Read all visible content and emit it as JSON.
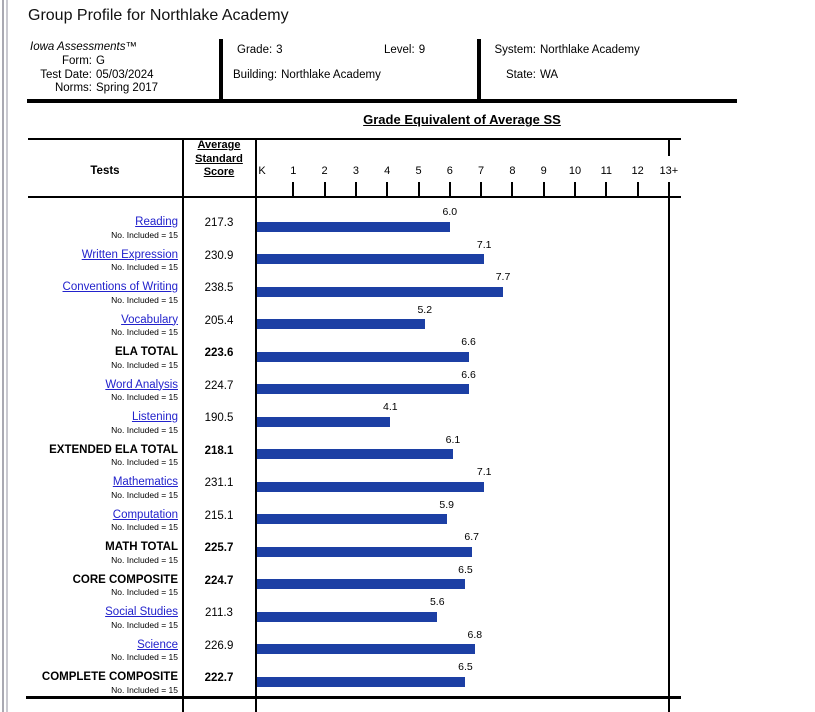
{
  "page": {
    "title": "Group Profile for Northlake Academy"
  },
  "theme": {
    "link_color": "#2222cc",
    "bar_color": "#1c3fa4",
    "rule_color": "#000000"
  },
  "info": {
    "product": "Iowa Assessments™",
    "fields_left": [
      {
        "label": "Form:",
        "value": "G"
      },
      {
        "label": "Test Date:",
        "value": "05/03/2024"
      },
      {
        "label": "Norms:",
        "value": "Spring 2017"
      }
    ],
    "grade": {
      "label": "Grade:",
      "value": "3"
    },
    "level": {
      "label": "Level:",
      "value": "9"
    },
    "building": {
      "label": "Building:",
      "value": "Northlake Academy"
    },
    "system": {
      "label": "System:",
      "value": "Northlake Academy"
    },
    "state": {
      "label": "State:",
      "value": "WA"
    }
  },
  "table_header": {
    "tests": "Tests",
    "avg_lines": [
      "Average",
      "Standard",
      "Score"
    ]
  },
  "chart_data": {
    "type": "bar",
    "orientation": "horizontal",
    "title": "Grade Equivalent of Average SS",
    "x_ticks": [
      "K",
      "1",
      "2",
      "3",
      "4",
      "5",
      "6",
      "7",
      "8",
      "9",
      "10",
      "11",
      "12",
      "13+"
    ],
    "x_range": [
      0,
      13
    ],
    "grid": false,
    "legend": false,
    "rows": [
      {
        "test": "Reading",
        "style": "link",
        "n_label": "No. Included = 15",
        "avg_ss": "217.3",
        "grade_equivalent": "6.0"
      },
      {
        "test": "Written Expression",
        "style": "link",
        "n_label": "No. Included = 15",
        "avg_ss": "230.9",
        "grade_equivalent": "7.1"
      },
      {
        "test": "Conventions of Writing",
        "style": "link",
        "n_label": "No. Included = 15",
        "avg_ss": "238.5",
        "grade_equivalent": "7.7"
      },
      {
        "test": "Vocabulary",
        "style": "link",
        "n_label": "No. Included = 15",
        "avg_ss": "205.4",
        "grade_equivalent": "5.2"
      },
      {
        "test": "ELA TOTAL",
        "style": "total",
        "n_label": "No. Included = 15",
        "avg_ss": "223.6",
        "grade_equivalent": "6.6"
      },
      {
        "test": "Word Analysis",
        "style": "link",
        "n_label": "No. Included = 15",
        "avg_ss": "224.7",
        "grade_equivalent": "6.6"
      },
      {
        "test": "Listening",
        "style": "link",
        "n_label": "No. Included = 15",
        "avg_ss": "190.5",
        "grade_equivalent": "4.1"
      },
      {
        "test": "EXTENDED ELA TOTAL",
        "style": "total",
        "n_label": "No. Included = 15",
        "avg_ss": "218.1",
        "grade_equivalent": "6.1"
      },
      {
        "test": "Mathematics",
        "style": "link",
        "n_label": "No. Included = 15",
        "avg_ss": "231.1",
        "grade_equivalent": "7.1"
      },
      {
        "test": "Computation",
        "style": "link",
        "n_label": "No. Included = 15",
        "avg_ss": "215.1",
        "grade_equivalent": "5.9"
      },
      {
        "test": "MATH TOTAL",
        "style": "total",
        "n_label": "No. Included = 15",
        "avg_ss": "225.7",
        "grade_equivalent": "6.7"
      },
      {
        "test": "CORE COMPOSITE",
        "style": "total",
        "n_label": "No. Included = 15",
        "avg_ss": "224.7",
        "grade_equivalent": "6.5"
      },
      {
        "test": "Social Studies",
        "style": "link",
        "n_label": "No. Included = 15",
        "avg_ss": "211.3",
        "grade_equivalent": "5.6"
      },
      {
        "test": "Science",
        "style": "link",
        "n_label": "No. Included = 15",
        "avg_ss": "226.9",
        "grade_equivalent": "6.8"
      },
      {
        "test": "COMPLETE COMPOSITE",
        "style": "total",
        "n_label": "No. Included = 15",
        "avg_ss": "222.7",
        "grade_equivalent": "6.5"
      }
    ]
  }
}
